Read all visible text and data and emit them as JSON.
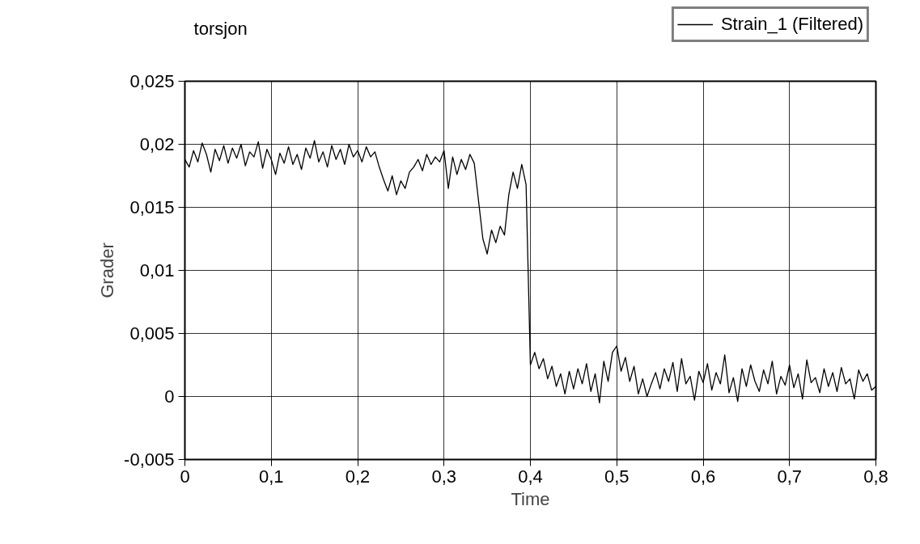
{
  "chart_data": {
    "type": "line",
    "title": "torsjon",
    "xlabel": "Time",
    "ylabel": "Grader",
    "x": [
      0,
      0.005,
      0.01,
      0.015,
      0.02,
      0.025,
      0.03,
      0.035,
      0.04,
      0.045,
      0.05,
      0.055,
      0.06,
      0.065,
      0.07,
      0.075,
      0.08,
      0.085,
      0.09,
      0.095,
      0.1,
      0.105,
      0.11,
      0.115,
      0.12,
      0.125,
      0.13,
      0.135,
      0.14,
      0.145,
      0.15,
      0.155,
      0.16,
      0.165,
      0.17,
      0.175,
      0.18,
      0.185,
      0.19,
      0.195,
      0.2,
      0.205,
      0.21,
      0.215,
      0.22,
      0.225,
      0.23,
      0.235,
      0.24,
      0.245,
      0.25,
      0.255,
      0.26,
      0.265,
      0.27,
      0.275,
      0.28,
      0.285,
      0.29,
      0.295,
      0.3,
      0.305,
      0.31,
      0.315,
      0.32,
      0.325,
      0.33,
      0.335,
      0.34,
      0.345,
      0.35,
      0.355,
      0.36,
      0.365,
      0.37,
      0.375,
      0.38,
      0.385,
      0.39,
      0.395,
      0.4,
      0.405,
      0.41,
      0.415,
      0.42,
      0.425,
      0.43,
      0.435,
      0.44,
      0.445,
      0.45,
      0.455,
      0.46,
      0.465,
      0.47,
      0.475,
      0.48,
      0.485,
      0.49,
      0.495,
      0.5,
      0.505,
      0.51,
      0.515,
      0.52,
      0.525,
      0.53,
      0.535,
      0.54,
      0.545,
      0.55,
      0.555,
      0.56,
      0.565,
      0.57,
      0.575,
      0.58,
      0.585,
      0.59,
      0.595,
      0.6,
      0.605,
      0.61,
      0.615,
      0.62,
      0.625,
      0.63,
      0.635,
      0.64,
      0.645,
      0.65,
      0.655,
      0.66,
      0.665,
      0.67,
      0.675,
      0.68,
      0.685,
      0.69,
      0.695,
      0.7,
      0.705,
      0.71,
      0.715,
      0.72,
      0.725,
      0.73,
      0.735,
      0.74,
      0.745,
      0.75,
      0.755,
      0.76,
      0.765,
      0.77,
      0.775,
      0.78,
      0.785,
      0.79,
      0.795,
      0.8
    ],
    "series": [
      {
        "name": "Strain_1 (Filtered)",
        "color": "#000000",
        "values": [
          0.0188,
          0.0182,
          0.0195,
          0.0186,
          0.0201,
          0.0192,
          0.0178,
          0.0196,
          0.0187,
          0.0199,
          0.0185,
          0.0197,
          0.0189,
          0.02,
          0.0183,
          0.0194,
          0.019,
          0.0202,
          0.0181,
          0.0196,
          0.0188,
          0.0176,
          0.0193,
          0.0185,
          0.0198,
          0.0184,
          0.0192,
          0.018,
          0.0197,
          0.0189,
          0.0203,
          0.0186,
          0.0194,
          0.0182,
          0.0199,
          0.0188,
          0.0196,
          0.0184,
          0.02,
          0.019,
          0.0195,
          0.0186,
          0.0198,
          0.019,
          0.0194,
          0.0182,
          0.0172,
          0.0163,
          0.0175,
          0.016,
          0.0171,
          0.0165,
          0.0178,
          0.0182,
          0.0188,
          0.0179,
          0.0192,
          0.0184,
          0.019,
          0.0186,
          0.0195,
          0.0165,
          0.019,
          0.0176,
          0.0188,
          0.018,
          0.0192,
          0.0185,
          0.0155,
          0.0125,
          0.0113,
          0.0132,
          0.0122,
          0.0135,
          0.0128,
          0.016,
          0.0178,
          0.0165,
          0.0184,
          0.0168,
          0.0025,
          0.0035,
          0.0022,
          0.003,
          0.0014,
          0.0024,
          0.0008,
          0.0018,
          0.0002,
          0.002,
          0.0006,
          0.0022,
          0.001,
          0.0026,
          0.0004,
          0.0018,
          -0.0005,
          0.0028,
          0.0012,
          0.0035,
          0.004,
          0.002,
          0.0031,
          0.0012,
          0.0024,
          0.0002,
          0.0014,
          0.0,
          0.001,
          0.0019,
          0.0006,
          0.0022,
          0.0012,
          0.0027,
          0.0004,
          0.003,
          0.001,
          0.0016,
          -0.0003,
          0.002,
          0.0011,
          0.0026,
          0.0005,
          0.0019,
          0.001,
          0.0033,
          0.0003,
          0.0015,
          -0.0004,
          0.0022,
          0.0008,
          0.0025,
          0.0012,
          0.0004,
          0.0021,
          0.001,
          0.0028,
          0.0002,
          0.0016,
          0.0009,
          0.0025,
          0.0007,
          0.0018,
          -0.0002,
          0.0029,
          0.0011,
          0.0015,
          0.0003,
          0.0022,
          0.0008,
          0.0019,
          0.0004,
          0.0023,
          0.001,
          0.0014,
          -0.0002,
          0.0021,
          0.0012,
          0.0018,
          0.0005,
          0.0008
        ]
      }
    ],
    "xlim": [
      0,
      0.8
    ],
    "ylim": [
      -0.005,
      0.025
    ],
    "xticks": [
      0,
      {
        "value": 0.1,
        "label": "0,1"
      },
      {
        "value": 0.2,
        "label": "0,2"
      },
      {
        "value": 0.3,
        "label": "0,3"
      },
      {
        "value": 0.4,
        "label": "0,4"
      },
      {
        "value": 0.5,
        "label": "0,5"
      },
      {
        "value": 0.6,
        "label": "0,6"
      },
      {
        "value": 0.7,
        "label": "0,7"
      },
      {
        "value": 0.8,
        "label": "0,8"
      }
    ],
    "yticks": [
      {
        "value": -0.005,
        "label": "-0,005"
      },
      0,
      {
        "value": 0.005,
        "label": "0,005"
      },
      {
        "value": 0.01,
        "label": "0,01"
      },
      {
        "value": 0.015,
        "label": "0,015"
      },
      {
        "value": 0.02,
        "label": "0,02"
      },
      {
        "value": 0.025,
        "label": "0,025"
      }
    ],
    "grid": true,
    "legend": "top right",
    "line_style": "solid",
    "marker": "none"
  }
}
